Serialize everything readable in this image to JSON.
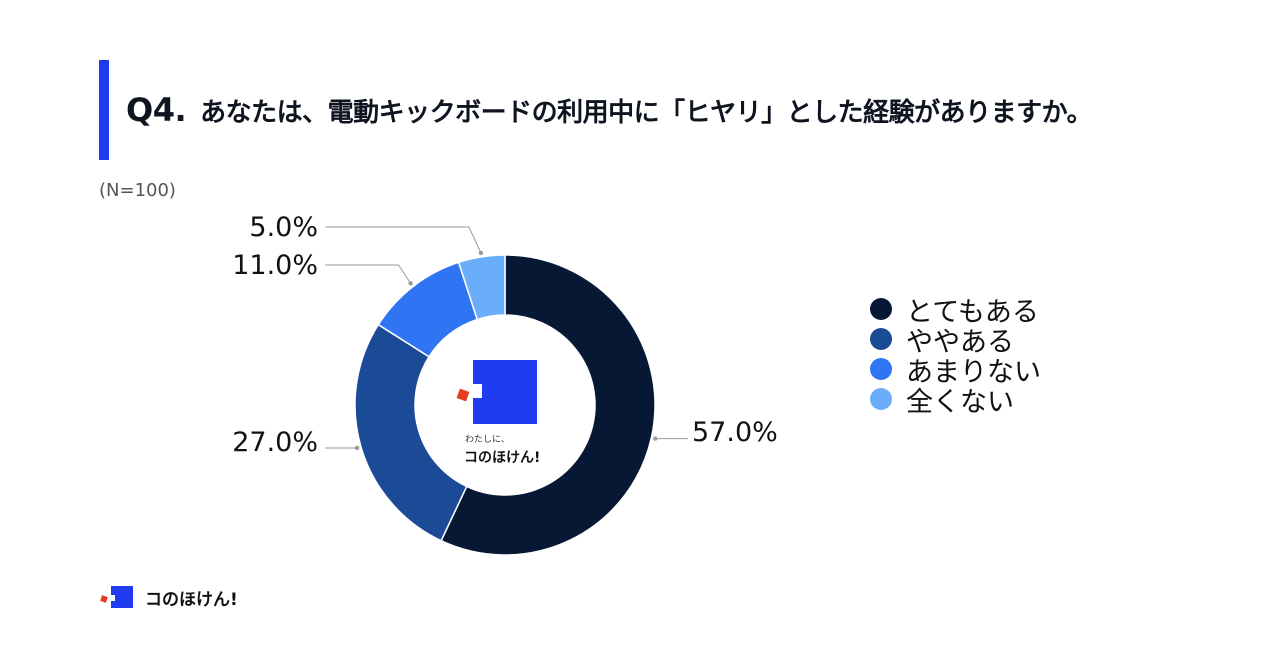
{
  "header": {
    "question_label": "Q4.",
    "question_text": "あなたは、電動キックボードの利用中に「ヒヤリ」とした経験がありますか。"
  },
  "sample_size": "(N=100)",
  "center_logo": {
    "small_text": "わたしに、",
    "brand_text": "コのほけん!",
    "icon": "brand-logo-icon"
  },
  "footer": {
    "brand_text": "コのほけん!",
    "icon": "brand-logo-icon"
  },
  "colors": {
    "accent": "#1f3cf0",
    "series": [
      "#071834",
      "#1b4a96",
      "#2f74f2",
      "#6aadfb"
    ]
  },
  "chart_data": {
    "type": "pie",
    "subtype": "donut",
    "categories": [
      "とてもある",
      "ややある",
      "あまりない",
      "全くない"
    ],
    "values": [
      57.0,
      27.0,
      11.0,
      5.0
    ],
    "data_labels": [
      "57.0%",
      "27.0%",
      "11.0%",
      "5.0%"
    ],
    "unit": "%",
    "legend_position": "right"
  }
}
